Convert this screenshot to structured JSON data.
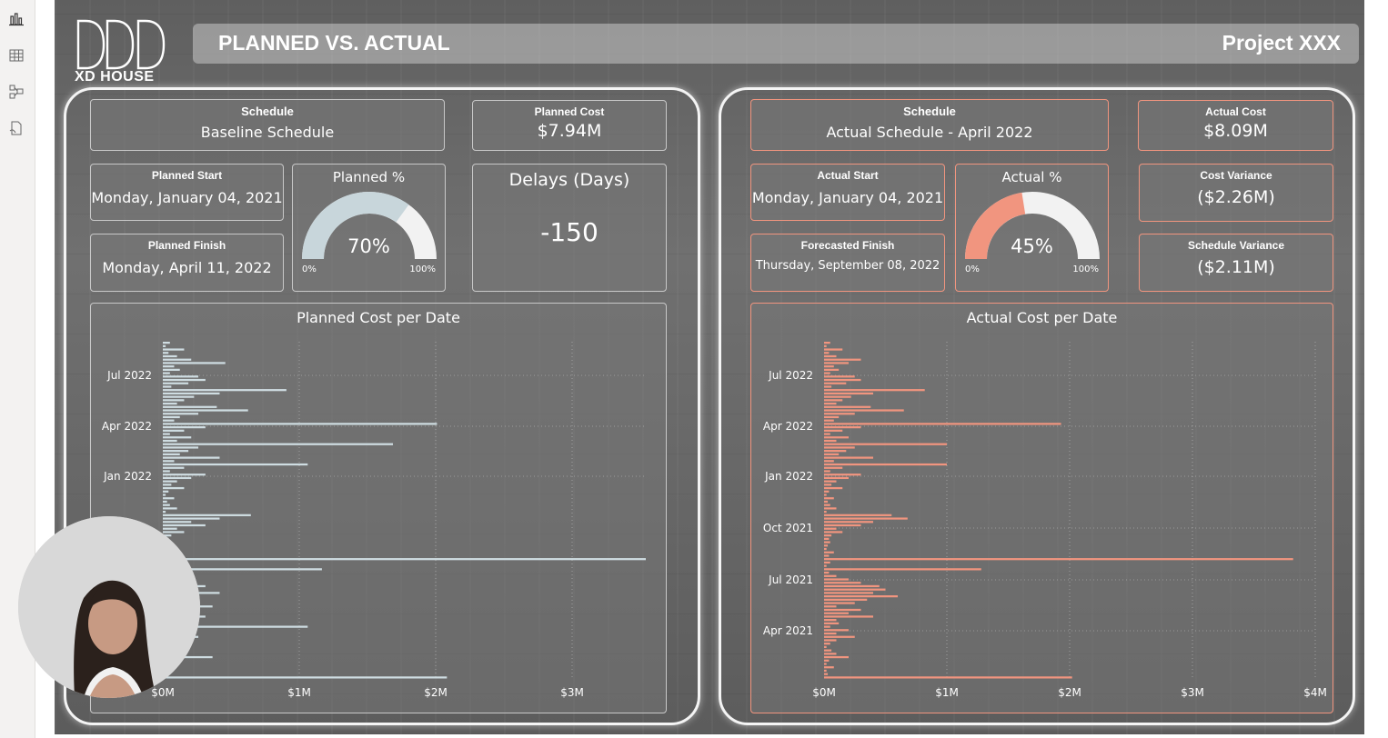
{
  "header": {
    "title": "PLANNED VS. ACTUAL",
    "project": "Project XXX",
    "logo_text": "XD HOUSE"
  },
  "sidebar": {
    "icons": [
      "bar-chart-icon",
      "table-icon",
      "model-icon",
      "dax-icon"
    ]
  },
  "planned": {
    "schedule_label": "Schedule",
    "schedule_value": "Baseline Schedule",
    "cost_label": "Planned Cost",
    "cost_value": "$7.94M",
    "start_label": "Planned Start",
    "start_value": "Monday, January 04, 2021",
    "finish_label": "Planned Finish",
    "finish_value": "Monday, April 11, 2022",
    "gauge_label": "Planned %",
    "gauge_value": "70%",
    "gauge_fraction": 0.7,
    "gauge_min": "0%",
    "gauge_max": "100%",
    "delays_label": "Delays (Days)",
    "delays_value": "-150"
  },
  "actual": {
    "schedule_label": "Schedule",
    "schedule_value": "Actual Schedule - April 2022",
    "cost_label": "Actual Cost",
    "cost_value": "$8.09M",
    "start_label": "Actual Start",
    "start_value": "Monday, January 04, 2021",
    "finish_label": "Forecasted Finish",
    "finish_value": "Thursday, September 08, 2022",
    "gauge_label": "Actual %",
    "gauge_value": "45%",
    "gauge_fraction": 0.45,
    "gauge_min": "0%",
    "gauge_max": "100%",
    "cost_var_label": "Cost Variance",
    "cost_var_value": "($2.26M)",
    "sched_var_label": "Schedule Variance",
    "sched_var_value": "($2.11M)"
  },
  "colors": {
    "planned_bar": "#cfdde2",
    "actual_bar": "#f1957f",
    "gauge_track": "#f2f2f2",
    "planned_gauge": "#c8d6db",
    "actual_gauge": "#f1957f"
  },
  "chart_data": [
    {
      "type": "bar",
      "title": "Planned Cost per Date",
      "orientation": "horizontal",
      "x_ticks": [
        "$0M",
        "$1M",
        "$2M",
        "$3M"
      ],
      "xlim": [
        0,
        3.4
      ],
      "y_ticks": [
        "Jul 2022",
        "Apr 2022",
        "Jan 2022"
      ],
      "grid": true,
      "values": [
        0.05,
        0.02,
        0.15,
        0.04,
        0.1,
        0.2,
        0.44,
        0.08,
        0.12,
        0.05,
        0.25,
        0.3,
        0.18,
        0.06,
        0.87,
        0.4,
        0.22,
        0.15,
        0.1,
        0.38,
        0.6,
        0.25,
        0.12,
        0.08,
        1.93,
        0.3,
        0.15,
        0.05,
        0.2,
        0.1,
        1.62,
        0.25,
        0.18,
        0.12,
        0.4,
        0.08,
        1.02,
        0.15,
        0.05,
        0.3,
        0.2,
        0.1,
        0.06,
        0.15,
        0.04,
        0.02,
        0.08,
        0.03,
        0.05,
        0.1,
        0.02,
        0.62,
        0.4,
        0.2,
        0.3,
        0.1,
        0.15,
        0.06,
        0.04,
        0.05,
        0.03,
        0.02,
        0.08,
        0.04,
        3.4,
        0.05,
        0.02,
        1.12,
        0.04,
        0.02,
        0.05,
        0.1,
        0.3,
        0.2,
        0.4,
        0.1,
        0.15,
        0.25,
        0.35,
        0.2,
        0.1,
        0.3,
        0.12,
        0.05,
        1.02,
        0.2,
        0.1,
        0.25,
        0.1,
        0.05,
        0.02,
        0.06,
        0.1,
        0.35,
        0.04,
        0.02,
        0.08,
        0.02,
        0.03,
        2.0
      ]
    },
    {
      "type": "bar",
      "title": "Actual Cost per Date",
      "orientation": "horizontal",
      "x_ticks": [
        "$0M",
        "$1M",
        "$2M",
        "$3M",
        "$4M"
      ],
      "xlim": [
        0,
        4.0
      ],
      "y_ticks": [
        "Jul 2022",
        "Apr 2022",
        "Jan 2022",
        "Oct 2021",
        "Jul 2021",
        "Apr 2021"
      ],
      "grid": true,
      "values": [
        0.05,
        0.02,
        0.15,
        0.04,
        0.1,
        0.3,
        0.2,
        0.08,
        0.12,
        0.05,
        0.25,
        0.3,
        0.18,
        0.06,
        0.82,
        0.4,
        0.22,
        0.15,
        0.1,
        0.38,
        0.65,
        0.25,
        0.12,
        0.08,
        1.93,
        0.3,
        0.15,
        0.05,
        0.2,
        0.1,
        1.0,
        0.25,
        0.18,
        0.12,
        0.4,
        0.08,
        1.0,
        0.15,
        0.05,
        0.3,
        0.2,
        0.1,
        0.06,
        0.15,
        0.04,
        0.02,
        0.08,
        0.03,
        0.05,
        0.1,
        0.02,
        0.55,
        0.68,
        0.4,
        0.3,
        0.1,
        0.15,
        0.06,
        0.04,
        0.05,
        0.03,
        0.02,
        0.08,
        0.04,
        3.82,
        0.05,
        0.02,
        1.28,
        0.04,
        0.1,
        0.2,
        0.3,
        0.45,
        0.5,
        0.4,
        0.6,
        0.35,
        0.25,
        0.1,
        0.3,
        0.2,
        0.4,
        0.1,
        0.12,
        0.05,
        0.2,
        0.1,
        0.25,
        0.1,
        0.05,
        0.02,
        0.06,
        0.1,
        0.2,
        0.04,
        0.02,
        0.08,
        0.02,
        0.03,
        2.02
      ]
    }
  ]
}
